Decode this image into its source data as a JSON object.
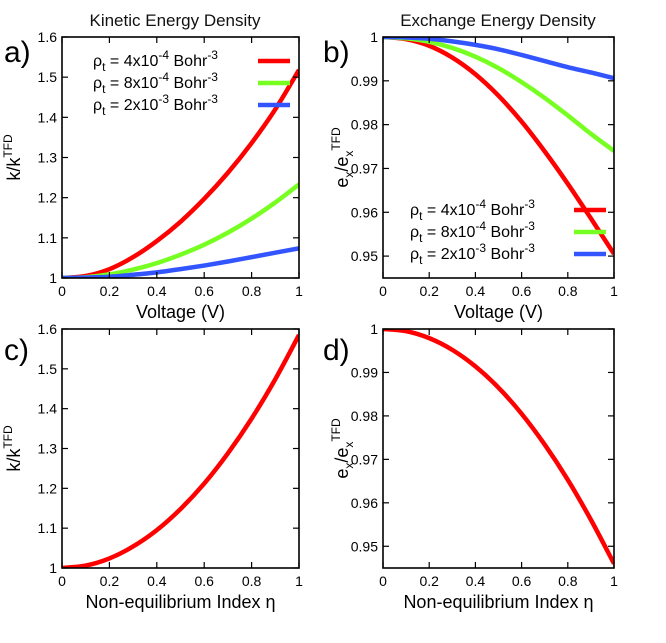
{
  "chart_data": [
    {
      "id": "a",
      "type": "line",
      "panel_label": "a)",
      "title": "Kinetic Energy Density",
      "xlabel": "Voltage (V)",
      "ylabel_main": "k/k",
      "ylabel_sup": "TFD",
      "xlim": [
        0,
        1
      ],
      "ylim": [
        1,
        1.6
      ],
      "xticks": [
        "0",
        "0.2",
        "0.4",
        "0.6",
        "0.8",
        "1"
      ],
      "yticks": [
        "1",
        "1.1",
        "1.2",
        "1.3",
        "1.4",
        "1.5",
        "1.6"
      ],
      "legend_position": "top-left",
      "series": [
        {
          "name": "ρt = 4x10-4 Bohr-3",
          "legend": {
            "pre": "ρ",
            "sub": "t",
            "mid": " = 4x10",
            "exp1": "-4",
            "unit": " Bohr",
            "exp2": "-3"
          },
          "color": "#ff0000",
          "x": [
            0,
            0.1,
            0.2,
            0.3,
            0.4,
            0.5,
            0.6,
            0.7,
            0.8,
            0.9,
            1.0
          ],
          "y": [
            1.0,
            1.005,
            1.022,
            1.052,
            1.092,
            1.14,
            1.197,
            1.262,
            1.336,
            1.42,
            1.518
          ]
        },
        {
          "name": "ρt = 8x10-4 Bohr-3",
          "legend": {
            "pre": "ρ",
            "sub": "t",
            "mid": " = 8x10",
            "exp1": "-4",
            "unit": " Bohr",
            "exp2": "-3"
          },
          "color": "#77ff22",
          "x": [
            0,
            0.1,
            0.2,
            0.3,
            0.4,
            0.5,
            0.6,
            0.7,
            0.8,
            0.9,
            1.0
          ],
          "y": [
            1.0,
            1.002,
            1.009,
            1.021,
            1.037,
            1.058,
            1.083,
            1.113,
            1.148,
            1.188,
            1.233
          ]
        },
        {
          "name": "ρt = 2x10-3 Bohr-3",
          "legend": {
            "pre": "ρ",
            "sub": "t",
            "mid": " = 2x10",
            "exp1": "-3",
            "unit": " Bohr",
            "exp2": "-3"
          },
          "color": "#3355ff",
          "x": [
            0,
            0.1,
            0.2,
            0.3,
            0.4,
            0.5,
            0.6,
            0.7,
            0.8,
            0.9,
            1.0
          ],
          "y": [
            1.0,
            1.001,
            1.003,
            1.008,
            1.014,
            1.022,
            1.031,
            1.041,
            1.052,
            1.063,
            1.074
          ]
        }
      ]
    },
    {
      "id": "b",
      "type": "line",
      "panel_label": "b)",
      "title": "Exchange Energy Density",
      "xlabel": "Voltage (V)",
      "ylabel_main": "e",
      "ylabel_sub": "x",
      "ylabel_mid": "/e",
      "ylabel_sub2": "x",
      "ylabel_sup": "TFD",
      "xlim": [
        0,
        1
      ],
      "ylim": [
        0.945,
        1.0
      ],
      "xticks": [
        "0",
        "0.2",
        "0.4",
        "0.6",
        "0.8",
        "1"
      ],
      "yticks": [
        "0.95",
        "0.96",
        "0.97",
        "0.98",
        "0.99",
        "1"
      ],
      "legend_position": "bottom-left",
      "series": [
        {
          "name": "ρt = 4x10-4 Bohr-3",
          "legend": {
            "pre": "ρ",
            "sub": "t",
            "mid": " = 4x10",
            "exp1": "-4",
            "unit": " Bohr",
            "exp2": "-3"
          },
          "color": "#ff0000",
          "x": [
            0,
            0.1,
            0.2,
            0.3,
            0.4,
            0.5,
            0.6,
            0.7,
            0.8,
            0.9,
            1.0
          ],
          "y": [
            1.0,
            0.9995,
            0.998,
            0.9953,
            0.9915,
            0.9866,
            0.9807,
            0.9739,
            0.9665,
            0.9586,
            0.9505
          ]
        },
        {
          "name": "ρt = 8x10-4 Bohr-3",
          "legend": {
            "pre": "ρ",
            "sub": "t",
            "mid": " = 8x10",
            "exp1": "-4",
            "unit": " Bohr",
            "exp2": "-3"
          },
          "color": "#77ff22",
          "x": [
            0,
            0.1,
            0.2,
            0.3,
            0.4,
            0.5,
            0.6,
            0.7,
            0.8,
            0.9,
            1.0
          ],
          "y": [
            1.0,
            0.9997,
            0.9989,
            0.9975,
            0.9955,
            0.9929,
            0.9897,
            0.9861,
            0.9821,
            0.9779,
            0.974
          ]
        },
        {
          "name": "ρt = 2x10-3 Bohr-3",
          "legend": {
            "pre": "ρ",
            "sub": "t",
            "mid": " = 2x10",
            "exp1": "-3",
            "unit": " Bohr",
            "exp2": "-3"
          },
          "color": "#3355ff",
          "x": [
            0,
            0.1,
            0.2,
            0.3,
            0.4,
            0.5,
            0.6,
            0.7,
            0.8,
            0.9,
            1.0
          ],
          "y": [
            1.0,
            0.9999,
            0.9996,
            0.999,
            0.9982,
            0.9972,
            0.9959,
            0.9945,
            0.9931,
            0.9919,
            0.9906
          ]
        }
      ]
    },
    {
      "id": "c",
      "type": "line",
      "panel_label": "c)",
      "title": "",
      "xlabel": "Non-equilibrium Index η",
      "ylabel_main": "k/k",
      "ylabel_sup": "TFD",
      "xlim": [
        0,
        1
      ],
      "ylim": [
        1,
        1.6
      ],
      "xticks": [
        "0",
        "0.2",
        "0.4",
        "0.6",
        "0.8",
        "1"
      ],
      "yticks": [
        "1",
        "1.1",
        "1.2",
        "1.3",
        "1.4",
        "1.5",
        "1.6"
      ],
      "series": [
        {
          "name": "k/kTFD",
          "color": "#ff0000",
          "x": [
            0,
            0.1,
            0.2,
            0.3,
            0.4,
            0.5,
            0.6,
            0.7,
            0.8,
            0.9,
            1.0
          ],
          "y": [
            1.0,
            1.006,
            1.024,
            1.054,
            1.095,
            1.148,
            1.212,
            1.288,
            1.375,
            1.474,
            1.585
          ]
        }
      ]
    },
    {
      "id": "d",
      "type": "line",
      "panel_label": "d)",
      "title": "",
      "xlabel": "Non-equilibrium Index η",
      "ylabel_main": "e",
      "ylabel_sub": "x",
      "ylabel_mid": "/e",
      "ylabel_sub2": "x",
      "ylabel_sup": "TFD",
      "xlim": [
        0,
        1
      ],
      "ylim": [
        0.945,
        1.0
      ],
      "xticks": [
        "0",
        "0.2",
        "0.4",
        "0.6",
        "0.8",
        "1"
      ],
      "yticks": [
        "0.95",
        "0.96",
        "0.97",
        "0.98",
        "0.99",
        "1"
      ],
      "series": [
        {
          "name": "ex/exTFD",
          "color": "#ff0000",
          "x": [
            0,
            0.1,
            0.2,
            0.3,
            0.4,
            0.5,
            0.6,
            0.7,
            0.8,
            0.9,
            1.0
          ],
          "y": [
            1.0,
            0.9995,
            0.9979,
            0.9952,
            0.9914,
            0.9865,
            0.9805,
            0.9734,
            0.9653,
            0.9561,
            0.946
          ]
        }
      ]
    }
  ]
}
